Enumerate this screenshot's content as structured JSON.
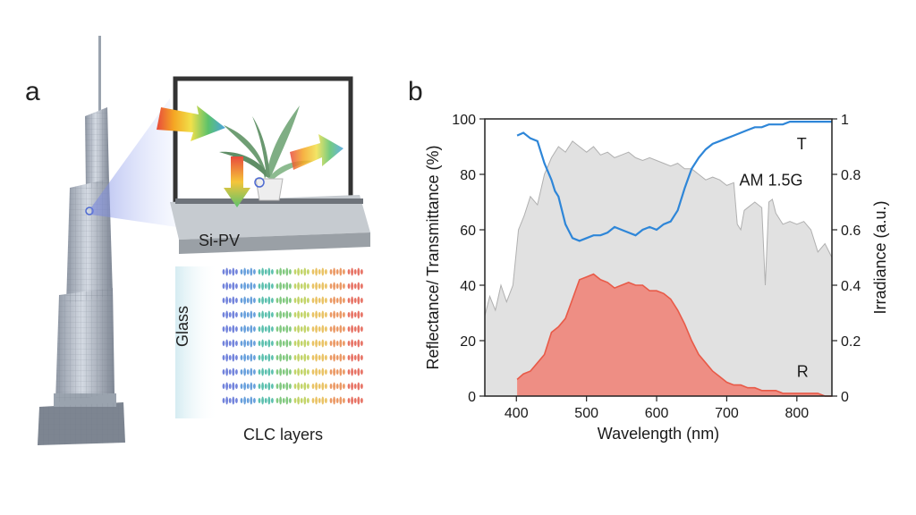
{
  "figure": {
    "panel_a": {
      "letter": "a",
      "labels": {
        "sipv": "Si-PV",
        "glass": "Glass",
        "clc": "CLC layers"
      }
    },
    "panel_b": {
      "letter": "b"
    }
  },
  "chart_data": {
    "type": "area",
    "xlabel": "Wavelength (nm)",
    "ylabel": "Reflectance/ Transmittance (%)",
    "y2label": "Irradiance (a.u.)",
    "xlim": [
      355,
      850
    ],
    "ylim": [
      0,
      100
    ],
    "y2lim": [
      0,
      1
    ],
    "xticks": [
      400,
      500,
      600,
      700,
      800
    ],
    "yticks": [
      0,
      20,
      40,
      60,
      80,
      100
    ],
    "y2ticks": [
      0,
      0.2,
      0.4,
      0.6,
      0.8,
      1
    ],
    "y2tick_labels": [
      "0",
      "0.2",
      "0.4",
      "0.6",
      "0.8",
      "1"
    ],
    "series": [
      {
        "name": "AM 1.5G",
        "axis": "right",
        "style": "area",
        "color": "#c8c8c8",
        "x": [
          355,
          362,
          370,
          378,
          386,
          395,
          403,
          411,
          420,
          430,
          440,
          450,
          460,
          470,
          480,
          490,
          500,
          510,
          520,
          530,
          540,
          550,
          560,
          570,
          580,
          590,
          600,
          610,
          620,
          630,
          640,
          650,
          660,
          670,
          680,
          690,
          700,
          710,
          715,
          720,
          725,
          730,
          740,
          750,
          755,
          760,
          765,
          770,
          780,
          790,
          800,
          810,
          820,
          830,
          840,
          850
        ],
        "values": [
          0.29,
          0.36,
          0.31,
          0.4,
          0.34,
          0.4,
          0.6,
          0.65,
          0.72,
          0.69,
          0.8,
          0.86,
          0.9,
          0.88,
          0.92,
          0.9,
          0.88,
          0.9,
          0.87,
          0.88,
          0.86,
          0.87,
          0.88,
          0.86,
          0.85,
          0.86,
          0.85,
          0.84,
          0.83,
          0.84,
          0.82,
          0.82,
          0.8,
          0.78,
          0.79,
          0.78,
          0.76,
          0.77,
          0.62,
          0.6,
          0.67,
          0.68,
          0.7,
          0.68,
          0.4,
          0.7,
          0.71,
          0.66,
          0.62,
          0.63,
          0.62,
          0.63,
          0.6,
          0.52,
          0.55,
          0.5
        ]
      },
      {
        "name": "T",
        "axis": "left",
        "style": "line",
        "color": "#2e86d8",
        "x": [
          401,
          410,
          420,
          430,
          440,
          450,
          455,
          460,
          470,
          480,
          490,
          500,
          510,
          520,
          530,
          540,
          550,
          560,
          570,
          580,
          590,
          600,
          610,
          620,
          630,
          640,
          650,
          660,
          670,
          680,
          690,
          700,
          710,
          720,
          730,
          740,
          750,
          760,
          770,
          780,
          790,
          800,
          810,
          820,
          830,
          840,
          850
        ],
        "values": [
          94,
          95,
          93,
          92,
          84,
          78,
          74,
          72,
          62,
          57,
          56,
          57,
          58,
          58,
          59,
          61,
          60,
          59,
          58,
          60,
          61,
          60,
          62,
          63,
          67,
          75,
          82,
          86,
          89,
          91,
          92,
          93,
          94,
          95,
          96,
          97,
          97,
          98,
          98,
          98,
          99,
          99,
          99,
          99,
          99,
          99,
          99
        ]
      },
      {
        "name": "R",
        "axis": "left",
        "style": "area",
        "color": "#f07f73",
        "x": [
          401,
          410,
          420,
          430,
          440,
          450,
          460,
          470,
          480,
          490,
          500,
          510,
          520,
          530,
          540,
          550,
          560,
          570,
          580,
          590,
          600,
          610,
          620,
          630,
          640,
          650,
          660,
          670,
          680,
          690,
          700,
          710,
          720,
          730,
          740,
          750,
          760,
          770,
          780,
          790,
          800,
          810,
          820,
          830,
          840,
          850
        ],
        "values": [
          6,
          8,
          9,
          12,
          15,
          23,
          25,
          28,
          35,
          42,
          43,
          44,
          42,
          41,
          39,
          40,
          41,
          40,
          40,
          38,
          38,
          37,
          35,
          31,
          26,
          20,
          15,
          12,
          9,
          7,
          5,
          4,
          4,
          3,
          3,
          2,
          2,
          2,
          1,
          1,
          1,
          1,
          1,
          1,
          0,
          0
        ]
      }
    ]
  }
}
